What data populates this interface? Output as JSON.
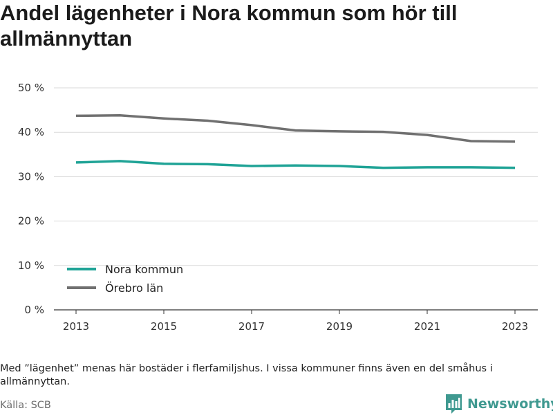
{
  "title": "Andel lägenheter i Nora kommun som hör till allmännyttan",
  "note": "Med ”lägenhet” menas här bostäder i flerfamiljshus. I vissa kommuner finns även en del småhus i allmännyttan.",
  "source": "Källa: SCB",
  "brand": {
    "name": "Newsworthy",
    "logo_icon": "newsworthy-logo-icon",
    "color": "#3f9990"
  },
  "chart_data": {
    "type": "line",
    "title": "Andel lägenheter i Nora kommun som hör till allmännyttan",
    "xlabel": "",
    "ylabel": "",
    "x": [
      2013,
      2014,
      2015,
      2016,
      2017,
      2018,
      2019,
      2020,
      2021,
      2022,
      2023
    ],
    "xticks": [
      2013,
      2015,
      2017,
      2019,
      2021,
      2023
    ],
    "xtick_labels": [
      "2013",
      "2015",
      "2017",
      "2019",
      "2021",
      "2023"
    ],
    "ylim": [
      0,
      50
    ],
    "yticks": [
      0,
      10,
      20,
      30,
      40,
      50
    ],
    "ytick_labels": [
      "0 %",
      "10 %",
      "20 %",
      "30 %",
      "40 %",
      "50 %"
    ],
    "grid": "horizontal",
    "legend_position": "bottom-left",
    "series": [
      {
        "name": "Nora kommun",
        "color": "#1fa396",
        "values": [
          33.2,
          33.5,
          32.9,
          32.8,
          32.4,
          32.5,
          32.4,
          32.0,
          32.1,
          32.1,
          32.0
        ]
      },
      {
        "name": "Örebro län",
        "color": "#707070",
        "values": [
          43.7,
          43.8,
          43.1,
          42.6,
          41.6,
          40.4,
          40.2,
          40.1,
          39.4,
          38.0,
          37.9
        ]
      }
    ]
  }
}
